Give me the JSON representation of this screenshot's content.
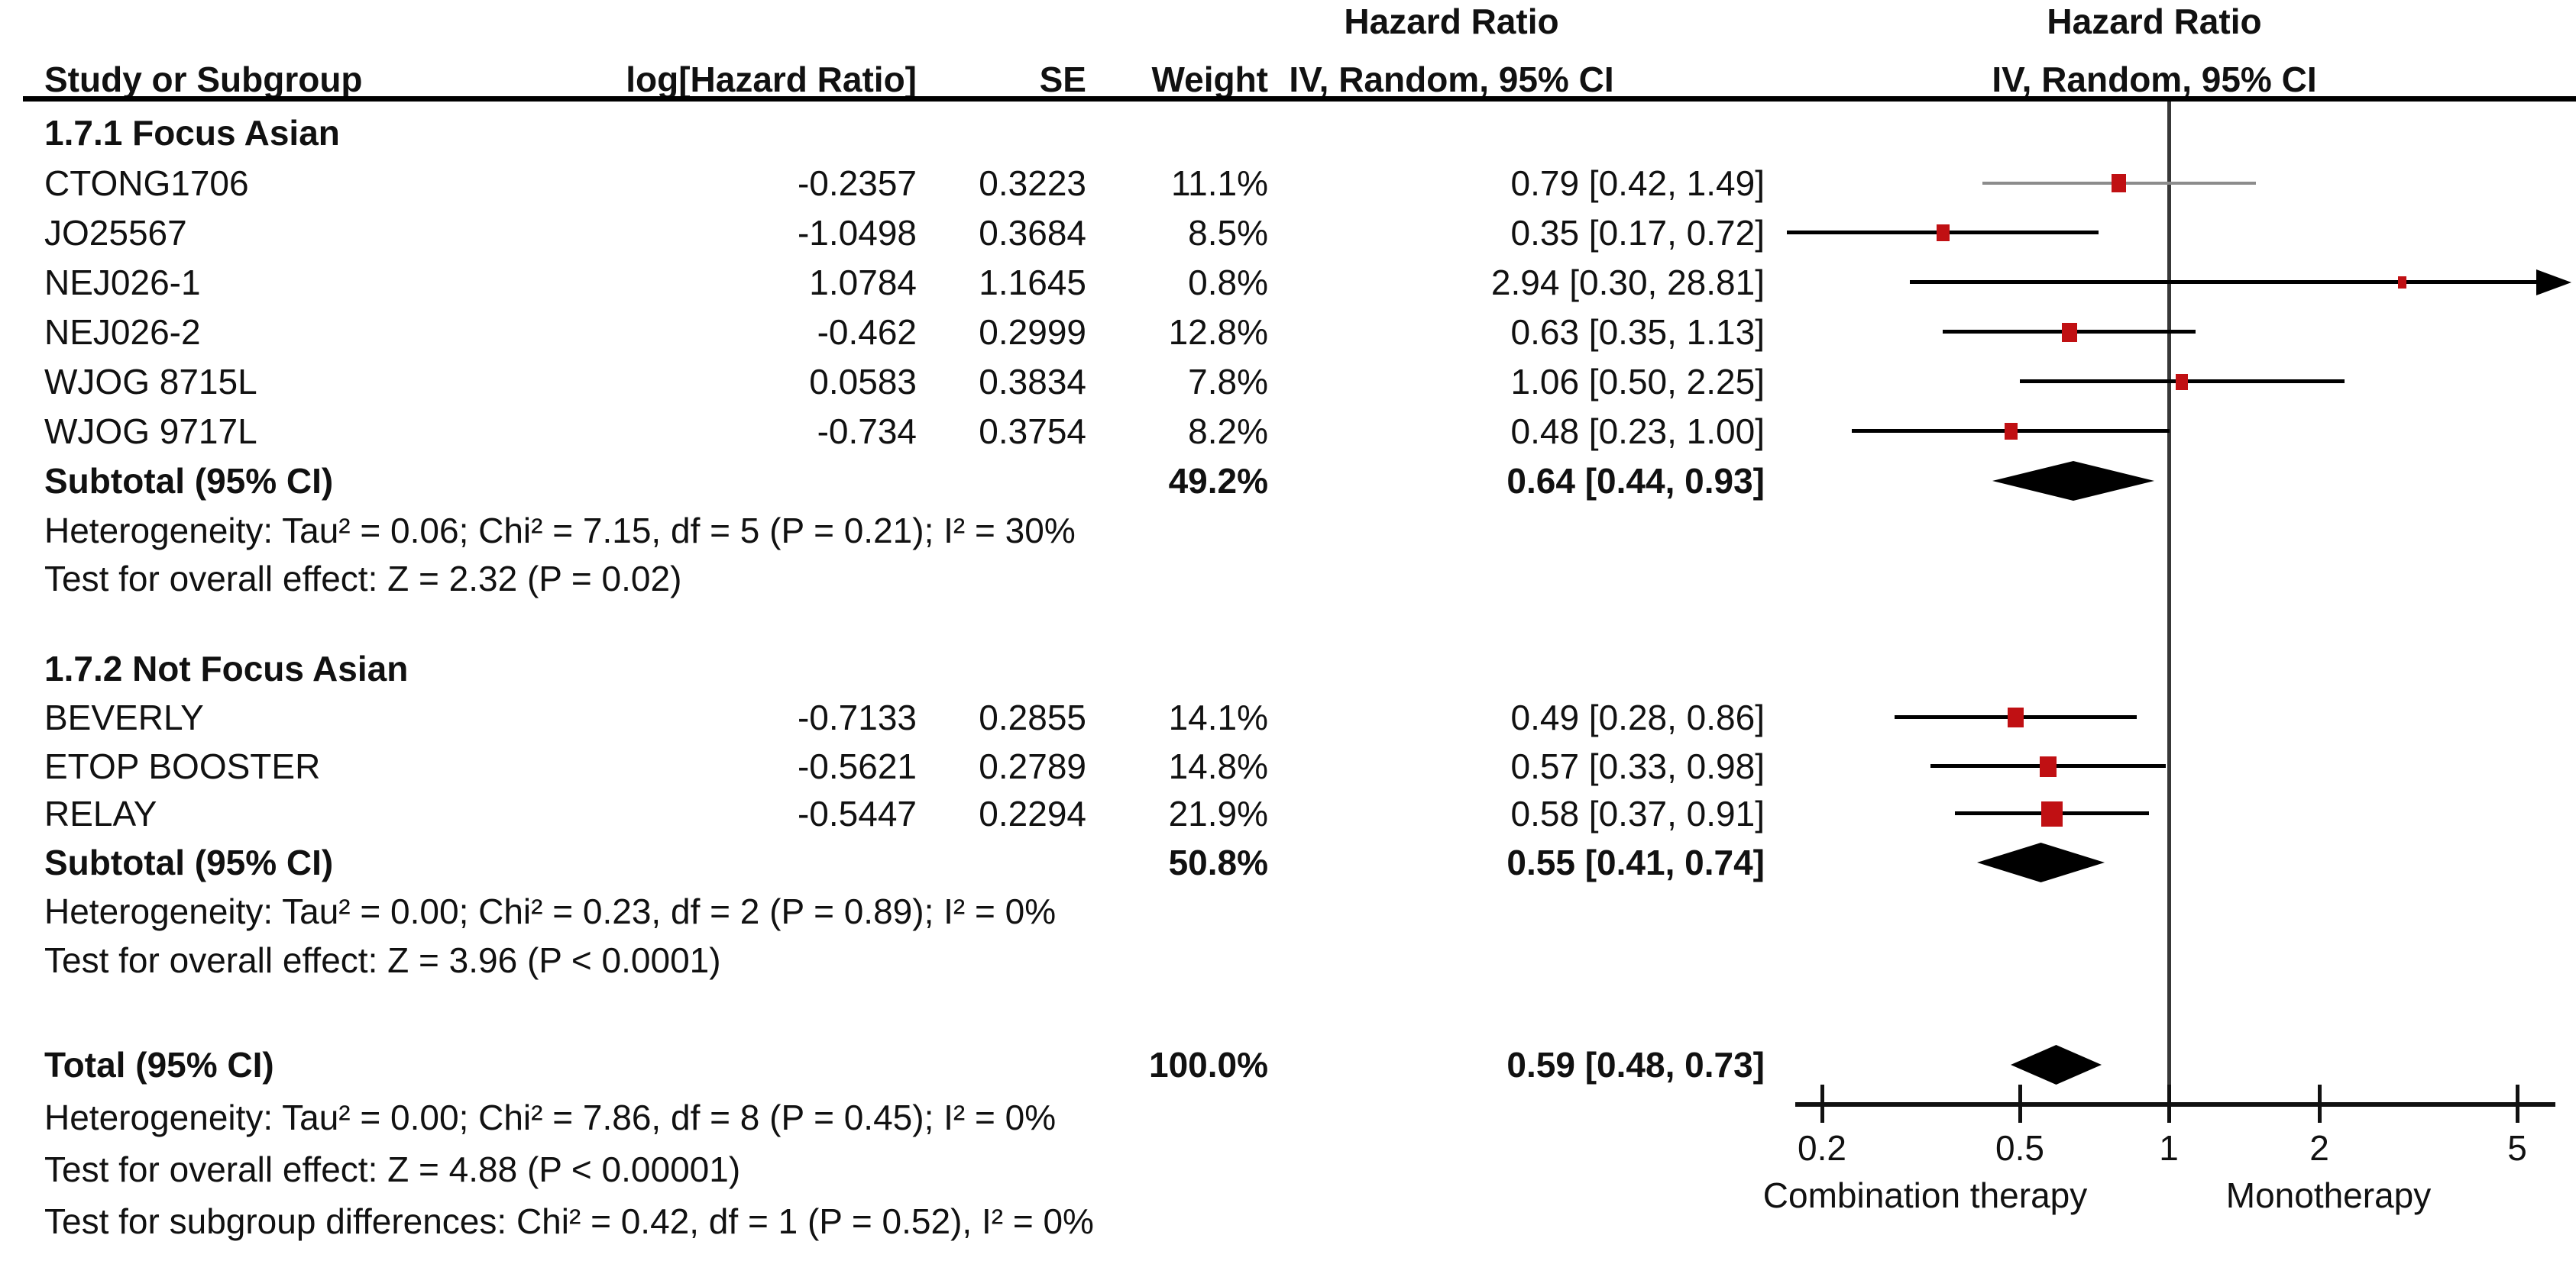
{
  "header": {
    "col_study": "Study or Subgroup",
    "col_loghr": "log[Hazard Ratio]",
    "col_se": "SE",
    "col_weight": "Weight",
    "effect_title": "Hazard Ratio",
    "model_subtitle": "IV, Random, 95% CI"
  },
  "colors": {
    "marker_red": "#c01013",
    "diamond_black": "#000000",
    "ci_line_black": "#000000",
    "ci_line_gray": "#8c8c8c"
  },
  "chart_data": {
    "type": "forest",
    "effect_measure": "Hazard Ratio",
    "model": "IV, Random, 95% CI",
    "axis": {
      "scale": "log",
      "ticks": [
        0.2,
        0.5,
        1,
        2,
        5
      ],
      "tick_labels": [
        "0.2",
        "0.5",
        "1",
        "2",
        "5"
      ],
      "left_label": "Combination therapy",
      "right_label": "Monotherapy"
    },
    "groups": [
      {
        "label": "1.7.1 Focus Asian",
        "studies": [
          {
            "name": "CTONG1706",
            "loghr": "-0.2357",
            "se": "0.3223",
            "weight": 11.1,
            "weight_label": "11.1%",
            "hr": 0.79,
            "lo": 0.42,
            "hi": 1.49,
            "ci_label": "0.79 [0.42, 1.49]",
            "line_color": "#8c8c8c",
            "line_width": 4
          },
          {
            "name": "JO25567",
            "loghr": "-1.0498",
            "se": "0.3684",
            "weight": 8.5,
            "weight_label": "8.5%",
            "hr": 0.35,
            "lo": 0.17,
            "hi": 0.72,
            "ci_label": "0.35 [0.17, 0.72]"
          },
          {
            "name": "NEJ026-1",
            "loghr": "1.0784",
            "se": "1.1645",
            "weight": 0.8,
            "weight_label": "0.8%",
            "hr": 2.94,
            "lo": 0.3,
            "hi": 28.81,
            "ci_label": "2.94 [0.30, 28.81]"
          },
          {
            "name": "NEJ026-2",
            "loghr": "-0.462",
            "se": "0.2999",
            "weight": 12.8,
            "weight_label": "12.8%",
            "hr": 0.63,
            "lo": 0.35,
            "hi": 1.13,
            "ci_label": "0.63 [0.35, 1.13]"
          },
          {
            "name": "WJOG 8715L",
            "loghr": "0.0583",
            "se": "0.3834",
            "weight": 7.8,
            "weight_label": "7.8%",
            "hr": 1.06,
            "lo": 0.5,
            "hi": 2.25,
            "ci_label": "1.06 [0.50, 2.25]"
          },
          {
            "name": "WJOG 9717L",
            "loghr": "-0.734",
            "se": "0.3754",
            "weight": 8.2,
            "weight_label": "8.2%",
            "hr": 0.48,
            "lo": 0.23,
            "hi": 1.0,
            "ci_label": "0.48 [0.23, 1.00]"
          }
        ],
        "subtotal": {
          "label": "Subtotal (95% CI)",
          "weight_label": "49.2%",
          "hr": 0.64,
          "lo": 0.44,
          "hi": 0.93,
          "ci_label": "0.64 [0.44, 0.93]"
        },
        "heterogeneity": "Heterogeneity: Tau² = 0.06; Chi² = 7.15, df = 5 (P = 0.21); I² = 30%",
        "overall_effect": "Test for overall effect: Z = 2.32 (P = 0.02)"
      },
      {
        "label": "1.7.2 Not Focus Asian",
        "studies": [
          {
            "name": "BEVERLY",
            "loghr": "-0.7133",
            "se": "0.2855",
            "weight": 14.1,
            "weight_label": "14.1%",
            "hr": 0.49,
            "lo": 0.28,
            "hi": 0.86,
            "ci_label": "0.49 [0.28, 0.86]"
          },
          {
            "name": "ETOP BOOSTER",
            "loghr": "-0.5621",
            "se": "0.2789",
            "weight": 14.8,
            "weight_label": "14.8%",
            "hr": 0.57,
            "lo": 0.33,
            "hi": 0.98,
            "ci_label": "0.57 [0.33, 0.98]"
          },
          {
            "name": "RELAY",
            "loghr": "-0.5447",
            "se": "0.2294",
            "weight": 21.9,
            "weight_label": "21.9%",
            "hr": 0.58,
            "lo": 0.37,
            "hi": 0.91,
            "ci_label": "0.58 [0.37, 0.91]"
          }
        ],
        "subtotal": {
          "label": "Subtotal (95% CI)",
          "weight_label": "50.8%",
          "hr": 0.55,
          "lo": 0.41,
          "hi": 0.74,
          "ci_label": "0.55 [0.41, 0.74]"
        },
        "heterogeneity": "Heterogeneity: Tau² = 0.00; Chi² = 0.23, df = 2 (P = 0.89); I² = 0%",
        "overall_effect": "Test for overall effect: Z = 3.96 (P < 0.0001)"
      }
    ],
    "total": {
      "label": "Total (95% CI)",
      "weight_label": "100.0%",
      "hr": 0.59,
      "lo": 0.48,
      "hi": 0.73,
      "ci_label": "0.59 [0.48, 0.73]"
    },
    "total_heterogeneity": "Heterogeneity: Tau² = 0.00; Chi² = 7.86, df = 8 (P = 0.45); I² = 0%",
    "total_overall_effect": "Test for overall effect: Z = 4.88 (P < 0.00001)",
    "subgroup_differences": "Test for subgroup differences: Chi² = 0.42, df = 1 (P = 0.52), I² = 0%"
  }
}
